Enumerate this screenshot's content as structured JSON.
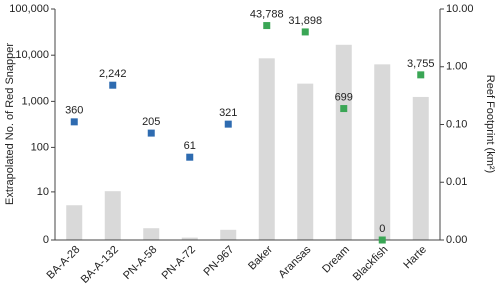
{
  "chart_data": {
    "type": "combo",
    "y_label": "Extrapolated No. of Red Snapper",
    "y2_label": "Reef Footprint (km²)",
    "categories": [
      "BA-A-28",
      "BA-A-132",
      "PN-A-58",
      "PN-A-72",
      "PN-967",
      "Baker",
      "Aransas",
      "Dream",
      "Blackfish",
      "Harte"
    ],
    "yscale": "symlog",
    "ylim": [
      0,
      100000
    ],
    "yticks": [
      0,
      10,
      100,
      {
        "value": 1000,
        "label": "1,000"
      },
      {
        "value": 10000,
        "label": "10,000"
      },
      {
        "value": 100000,
        "label": "100,000"
      }
    ],
    "y2scale": "log",
    "y2lim": [
      0.001,
      10
    ],
    "y2ticks": [
      {
        "value": 0.001,
        "label": "0.00"
      },
      {
        "value": 0.01,
        "label": "0.01"
      },
      {
        "value": 0.1,
        "label": "0.10"
      },
      {
        "value": 1,
        "label": "1.00"
      },
      {
        "value": 10,
        "label": "10.00"
      }
    ],
    "series": [
      {
        "axis": "y2",
        "color": "#d9d9d9",
        "values": [
          0.004,
          0.007,
          0.0016,
          0.0011,
          0.0015,
          1.4,
          0.51,
          2.4,
          1.1,
          0.3
        ]
      },
      {
        "axis": "y",
        "colors": [
          "#2e6bb0",
          "#2e6bb0",
          "#2e6bb0",
          "#2e6bb0",
          "#2e6bb0",
          "#3aa655",
          "#3aa655",
          "#3aa655",
          "#3aa655",
          "#3aa655"
        ],
        "values": [
          360,
          2242,
          205,
          61,
          321,
          43788,
          31898,
          699,
          0,
          3755
        ],
        "value_labels": [
          "360",
          "2,242",
          "205",
          "61",
          "321",
          "43,788",
          "31,898",
          "699",
          "0",
          "3,755"
        ]
      }
    ]
  }
}
